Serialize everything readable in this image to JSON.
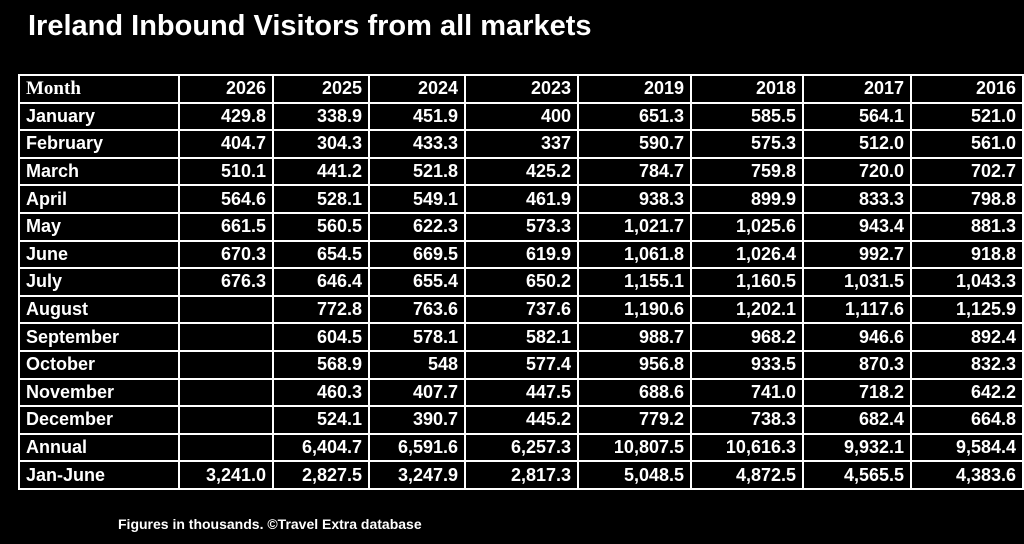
{
  "title": "Ireland Inbound Visitors from all markets",
  "table": {
    "headers": [
      "Month",
      "2026",
      "2025",
      "2024",
      "2023",
      "2019",
      "2018",
      "2017",
      "2016"
    ],
    "rows": [
      [
        "January",
        "429.8",
        "338.9",
        "451.9",
        "400",
        "651.3",
        "585.5",
        "564.1",
        "521.0"
      ],
      [
        "February",
        "404.7",
        "304.3",
        "433.3",
        "337",
        "590.7",
        "575.3",
        "512.0",
        "561.0"
      ],
      [
        "March",
        "510.1",
        "441.2",
        "521.8",
        "425.2",
        "784.7",
        "759.8",
        "720.0",
        "702.7"
      ],
      [
        "April",
        "564.6",
        "528.1",
        "549.1",
        "461.9",
        "938.3",
        "899.9",
        "833.3",
        "798.8"
      ],
      [
        "May",
        "661.5",
        "560.5",
        "622.3",
        "573.3",
        "1,021.7",
        "1,025.6",
        "943.4",
        "881.3"
      ],
      [
        "June",
        "670.3",
        "654.5",
        "669.5",
        "619.9",
        "1,061.8",
        "1,026.4",
        "992.7",
        "918.8"
      ],
      [
        "July",
        "676.3",
        "646.4",
        "655.4",
        "650.2",
        "1,155.1",
        "1,160.5",
        "1,031.5",
        "1,043.3"
      ],
      [
        "August",
        null,
        "772.8",
        "763.6",
        "737.6",
        "1,190.6",
        "1,202.1",
        "1,117.6",
        "1,125.9"
      ],
      [
        "September",
        null,
        "604.5",
        "578.1",
        "582.1",
        "988.7",
        "968.2",
        "946.6",
        "892.4"
      ],
      [
        "October",
        null,
        "568.9",
        "548",
        "577.4",
        "956.8",
        "933.5",
        "870.3",
        "832.3"
      ],
      [
        "November",
        null,
        "460.3",
        "407.7",
        "447.5",
        "688.6",
        "741.0",
        "718.2",
        "642.2"
      ],
      [
        "December",
        null,
        "524.1",
        "390.7",
        "445.2",
        "779.2",
        "738.3",
        "682.4",
        "664.8"
      ],
      [
        "Annual",
        null,
        "6,404.7",
        "6,591.6",
        "6,257.3",
        "10,807.5",
        "10,616.3",
        "9,932.1",
        "9,584.4"
      ],
      [
        "Jan-June",
        "3,241.0",
        "2,827.5",
        "3,247.9",
        "2,817.3",
        "5,048.5",
        "4,872.5",
        "4,565.5",
        "4,383.6"
      ]
    ]
  },
  "footnote": "Figures in thousands. ©Travel Extra database"
}
